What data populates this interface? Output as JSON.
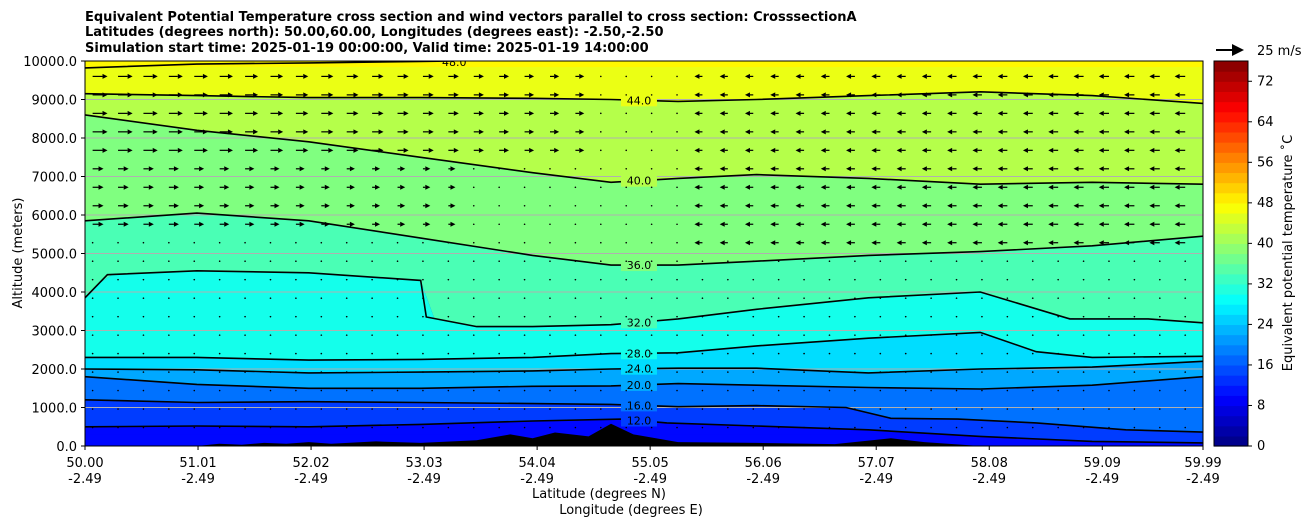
{
  "chart_data": {
    "type": "heatmap",
    "title_lines": [
      "Equivalent Potential Temperature cross section and wind vectors parallel to cross section: CrosssectionA",
      "Latitudes (degrees north): 50.00,60.00, Longitudes (degrees east): -2.50,-2.50",
      "Simulation start time: 2025-01-19 00:00:00, Valid time: 2025-01-19 14:00:00"
    ],
    "ylabel": "Altitude (meters)",
    "xlabel_lines": [
      "Latitude (degrees N)",
      "Longitude (degrees E)"
    ],
    "x_ticks": [
      {
        "lat": "50.00",
        "lon": "-2.49"
      },
      {
        "lat": "51.01",
        "lon": "-2.49"
      },
      {
        "lat": "52.02",
        "lon": "-2.49"
      },
      {
        "lat": "53.03",
        "lon": "-2.49"
      },
      {
        "lat": "54.04",
        "lon": "-2.49"
      },
      {
        "lat": "55.05",
        "lon": "-2.49"
      },
      {
        "lat": "56.06",
        "lon": "-2.49"
      },
      {
        "lat": "57.07",
        "lon": "-2.49"
      },
      {
        "lat": "58.08",
        "lon": "-2.49"
      },
      {
        "lat": "59.09",
        "lon": "-2.49"
      },
      {
        "lat": "59.99",
        "lon": "-2.49"
      }
    ],
    "x_range": [
      50.0,
      59.99
    ],
    "y_ticks": [
      "0.0",
      "1000.0",
      "2000.0",
      "3000.0",
      "4000.0",
      "5000.0",
      "6000.0",
      "7000.0",
      "8000.0",
      "9000.0",
      "10000.0"
    ],
    "ylim": [
      0,
      10000
    ],
    "grid": true,
    "colorbar": {
      "label": "Equivalent potential temperature $^\\circ$C",
      "label_text": "Equivalent potential temperature ˚C",
      "ticks": [
        "0",
        "8",
        "16",
        "24",
        "32",
        "40",
        "48",
        "56",
        "64",
        "72"
      ],
      "range": [
        0,
        76
      ],
      "colormap": "jet"
    },
    "quiver_key": {
      "label": "25 m/s",
      "speed": 25
    },
    "contours": [
      {
        "level": 12.0,
        "label": "12.0",
        "points": [
          [
            50.0,
            500
          ],
          [
            51.0,
            520
          ],
          [
            52.0,
            500
          ],
          [
            53.0,
            560
          ],
          [
            54.0,
            650
          ],
          [
            54.8,
            700
          ],
          [
            55.2,
            600
          ],
          [
            56,
            520
          ],
          [
            57,
            420
          ],
          [
            58,
            250
          ],
          [
            59,
            120
          ],
          [
            59.99,
            80
          ]
        ]
      },
      {
        "level": 16.0,
        "label": "16.0",
        "points": [
          [
            50.0,
            1200
          ],
          [
            51.0,
            1130
          ],
          [
            52.0,
            1150
          ],
          [
            53.0,
            1130
          ],
          [
            54.0,
            1100
          ],
          [
            54.7,
            1080
          ],
          [
            55.3,
            1020
          ],
          [
            56,
            1050
          ],
          [
            56.8,
            1000
          ],
          [
            57.2,
            720
          ],
          [
            57.8,
            700
          ],
          [
            58.5,
            600
          ],
          [
            59.3,
            420
          ],
          [
            59.99,
            360
          ]
        ]
      },
      {
        "level": 20.0,
        "label": "20.0",
        "points": [
          [
            50.0,
            1800
          ],
          [
            51.0,
            1600
          ],
          [
            52.0,
            1500
          ],
          [
            53.0,
            1500
          ],
          [
            54.0,
            1550
          ],
          [
            54.7,
            1560
          ],
          [
            55.3,
            1620
          ],
          [
            56,
            1580
          ],
          [
            57,
            1520
          ],
          [
            58,
            1480
          ],
          [
            59,
            1580
          ],
          [
            59.99,
            1800
          ]
        ]
      },
      {
        "level": 24.0,
        "label": "24.0",
        "points": [
          [
            50.0,
            2000
          ],
          [
            51.0,
            1980
          ],
          [
            52.0,
            1900
          ],
          [
            53.0,
            1920
          ],
          [
            54.0,
            1950
          ],
          [
            54.7,
            2000
          ],
          [
            55.3,
            2020
          ],
          [
            56,
            2020
          ],
          [
            57,
            1900
          ],
          [
            58,
            2000
          ],
          [
            59,
            2050
          ],
          [
            59.99,
            2200
          ]
        ]
      },
      {
        "level": 28.0,
        "label": "28.0",
        "points": [
          [
            50.0,
            2300
          ],
          [
            51.0,
            2300
          ],
          [
            52.0,
            2230
          ],
          [
            53.0,
            2250
          ],
          [
            54.0,
            2300
          ],
          [
            54.7,
            2400
          ],
          [
            55.3,
            2420
          ],
          [
            56,
            2600
          ],
          [
            57,
            2800
          ],
          [
            58,
            2950
          ],
          [
            58.5,
            2450
          ],
          [
            59,
            2300
          ],
          [
            59.99,
            2330
          ]
        ]
      },
      {
        "level": 32.0,
        "label": "32.0",
        "points": [
          [
            50.0,
            3850
          ],
          [
            50.2,
            4450
          ],
          [
            51.0,
            4550
          ],
          [
            52.0,
            4500
          ],
          [
            53.0,
            4300
          ],
          [
            53.05,
            3350
          ],
          [
            53.5,
            3100
          ],
          [
            54.0,
            3100
          ],
          [
            54.7,
            3150
          ],
          [
            55.3,
            3300
          ],
          [
            56,
            3550
          ],
          [
            57,
            3850
          ],
          [
            58,
            4000
          ],
          [
            58.8,
            3300
          ],
          [
            59.5,
            3300
          ],
          [
            59.99,
            3200
          ]
        ]
      },
      {
        "level": 36.0,
        "label": "36.0",
        "points": [
          [
            50.0,
            5850
          ],
          [
            51.0,
            6050
          ],
          [
            52.0,
            5850
          ],
          [
            53.0,
            5400
          ],
          [
            54.0,
            4950
          ],
          [
            54.7,
            4700
          ],
          [
            55.3,
            4700
          ],
          [
            56,
            4800
          ],
          [
            57,
            4950
          ],
          [
            58,
            5050
          ],
          [
            59,
            5200
          ],
          [
            59.99,
            5450
          ]
        ]
      },
      {
        "level": 40.0,
        "label": "40.0",
        "points": [
          [
            50.0,
            8600
          ],
          [
            51.0,
            8200
          ],
          [
            52.0,
            7900
          ],
          [
            53.0,
            7500
          ],
          [
            54.0,
            7100
          ],
          [
            54.7,
            6850
          ],
          [
            55.3,
            6950
          ],
          [
            56,
            7050
          ],
          [
            57,
            6950
          ],
          [
            58,
            6800
          ],
          [
            59,
            6850
          ],
          [
            59.99,
            6800
          ]
        ]
      },
      {
        "level": 44.0,
        "label": "44.0",
        "points": [
          [
            50.0,
            9150
          ],
          [
            51.0,
            9100
          ],
          [
            52.0,
            9050
          ],
          [
            53.0,
            9050
          ],
          [
            54.0,
            9030
          ],
          [
            54.7,
            9000
          ],
          [
            55.3,
            8950
          ],
          [
            56,
            9000
          ],
          [
            57,
            9100
          ],
          [
            58,
            9200
          ],
          [
            59,
            9100
          ],
          [
            59.99,
            8900
          ]
        ]
      },
      {
        "level": 48.0,
        "label": "48.0",
        "points": [
          [
            50.0,
            9820
          ],
          [
            51.0,
            9920
          ],
          [
            52.0,
            9950
          ],
          [
            53.0,
            9990
          ],
          [
            53.3,
            10000
          ]
        ]
      }
    ],
    "terrain": [
      [
        50.0,
        0
      ],
      [
        51.0,
        0
      ],
      [
        51.2,
        60
      ],
      [
        51.4,
        30
      ],
      [
        51.6,
        80
      ],
      [
        51.8,
        60
      ],
      [
        52.0,
        100
      ],
      [
        52.2,
        60
      ],
      [
        52.6,
        120
      ],
      [
        53.0,
        80
      ],
      [
        53.5,
        150
      ],
      [
        53.8,
        300
      ],
      [
        54.0,
        200
      ],
      [
        54.2,
        350
      ],
      [
        54.5,
        250
      ],
      [
        54.7,
        580
      ],
      [
        54.9,
        300
      ],
      [
        55.1,
        200
      ],
      [
        55.3,
        100
      ],
      [
        56.0,
        80
      ],
      [
        56.7,
        50
      ],
      [
        57.2,
        200
      ],
      [
        57.5,
        100
      ],
      [
        58.0,
        0
      ],
      [
        59.99,
        0
      ]
    ]
  }
}
